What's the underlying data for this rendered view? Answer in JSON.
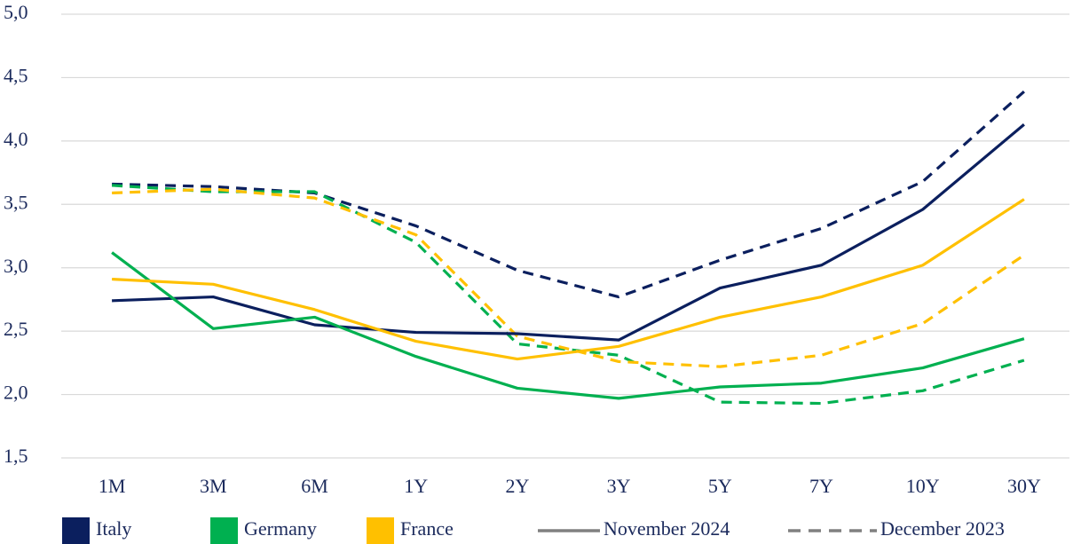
{
  "chart_data": {
    "type": "line",
    "categories": [
      "1M",
      "3M",
      "6M",
      "1Y",
      "2Y",
      "3Y",
      "5Y",
      "7Y",
      "10Y",
      "30Y"
    ],
    "ylim": [
      1.5,
      5.0
    ],
    "yticks": [
      {
        "value": 1.5,
        "label": "1,5"
      },
      {
        "value": 2.0,
        "label": "2,0"
      },
      {
        "value": 2.5,
        "label": "2,5"
      },
      {
        "value": 3.0,
        "label": "3,0"
      },
      {
        "value": 3.5,
        "label": "3,5"
      },
      {
        "value": 4.0,
        "label": "4,0"
      },
      {
        "value": 4.5,
        "label": "4,5"
      },
      {
        "value": 5.0,
        "label": "5,0"
      }
    ],
    "grid": true,
    "series": [
      {
        "name": "Italy",
        "color": "#0b1f5e",
        "period": "November 2024",
        "line_style": "solid",
        "values": [
          2.74,
          2.77,
          2.55,
          2.49,
          2.48,
          2.43,
          2.84,
          3.02,
          3.46,
          4.13
        ]
      },
      {
        "name": "Germany",
        "color": "#00b050",
        "period": "November 2024",
        "line_style": "solid",
        "values": [
          3.12,
          2.52,
          2.61,
          2.3,
          2.05,
          1.97,
          2.06,
          2.09,
          2.21,
          2.44
        ]
      },
      {
        "name": "France",
        "color": "#ffc000",
        "period": "November 2024",
        "line_style": "solid",
        "values": [
          2.91,
          2.87,
          2.67,
          2.42,
          2.28,
          2.38,
          2.61,
          2.77,
          3.02,
          3.54
        ]
      },
      {
        "name": "Italy",
        "color": "#0b1f5e",
        "period": "December 2023",
        "line_style": "dashed",
        "values": [
          3.66,
          3.64,
          3.59,
          3.33,
          2.98,
          2.77,
          3.06,
          3.31,
          3.68,
          4.39
        ]
      },
      {
        "name": "Germany",
        "color": "#00b050",
        "period": "December 2023",
        "line_style": "dashed",
        "values": [
          3.65,
          3.6,
          3.6,
          3.2,
          2.4,
          2.31,
          1.94,
          1.93,
          2.03,
          2.27
        ]
      },
      {
        "name": "France",
        "color": "#ffc000",
        "period": "December 2023",
        "line_style": "dashed",
        "values": [
          3.59,
          3.62,
          3.55,
          3.26,
          2.46,
          2.26,
          2.22,
          2.31,
          2.56,
          3.1
        ]
      }
    ]
  }
}
